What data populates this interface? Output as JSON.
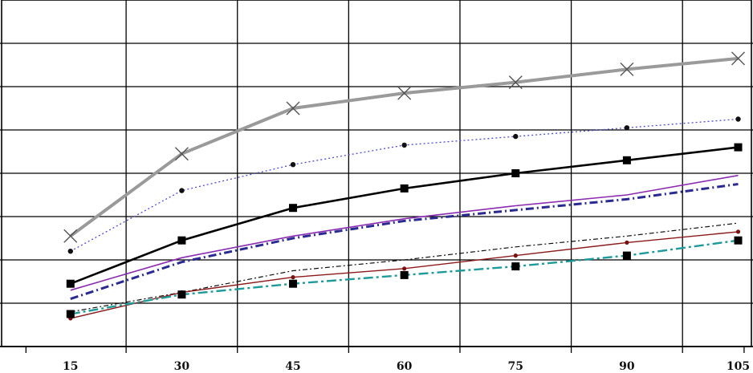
{
  "chart_data": {
    "type": "line",
    "x": [
      15,
      30,
      45,
      60,
      75,
      90,
      105
    ],
    "xlim": [
      5.5,
      107
    ],
    "ylim": [
      0,
      8
    ],
    "grid": true,
    "tick_labels": [
      "15",
      "30",
      "45",
      "60",
      "75",
      "90",
      "105"
    ],
    "series": [
      {
        "values": [
          2.55,
          4.45,
          5.5,
          5.85,
          6.1,
          6.4,
          6.65
        ],
        "color": "#9a9a9a",
        "dash": "",
        "width": 4,
        "marker": "x",
        "label": ""
      },
      {
        "values": [
          2.2,
          3.6,
          4.2,
          4.65,
          4.85,
          5.05,
          5.25
        ],
        "color": "#4c4cd0",
        "dash": "2 3",
        "width": 1.3,
        "marker": "dot",
        "label": ""
      },
      {
        "values": [
          1.45,
          2.45,
          3.2,
          3.65,
          4.0,
          4.3,
          4.6
        ],
        "color": "#000000",
        "dash": "",
        "width": 2.6,
        "marker": "square",
        "label": ""
      },
      {
        "values": [
          1.3,
          2.05,
          2.55,
          2.95,
          3.25,
          3.5,
          3.95
        ],
        "color": "#8a2bb0",
        "dash": "",
        "width": 1.6,
        "marker": "none",
        "label": ""
      },
      {
        "values": [
          1.1,
          1.95,
          2.5,
          2.9,
          3.15,
          3.4,
          3.75
        ],
        "color": "#2a2a90",
        "dash": "10 4 2 4",
        "width": 3,
        "marker": "none",
        "label": ""
      },
      {
        "values": [
          0.8,
          1.25,
          1.75,
          2.0,
          2.3,
          2.55,
          2.85
        ],
        "color": "#111111",
        "dash": "6 3 2 3",
        "width": 1.2,
        "marker": "none",
        "label": ""
      },
      {
        "values": [
          0.65,
          1.25,
          1.6,
          1.8,
          2.1,
          2.4,
          2.65
        ],
        "color": "#8b1a1a",
        "dash": "",
        "width": 1.4,
        "marker": "smalldot",
        "label": ""
      },
      {
        "values": [
          0.75,
          1.2,
          1.45,
          1.65,
          1.85,
          2.1,
          2.45
        ],
        "color": "#1f9a9a",
        "dash": "12 4 3 4",
        "width": 2.4,
        "marker": "square",
        "label": ""
      }
    ]
  }
}
